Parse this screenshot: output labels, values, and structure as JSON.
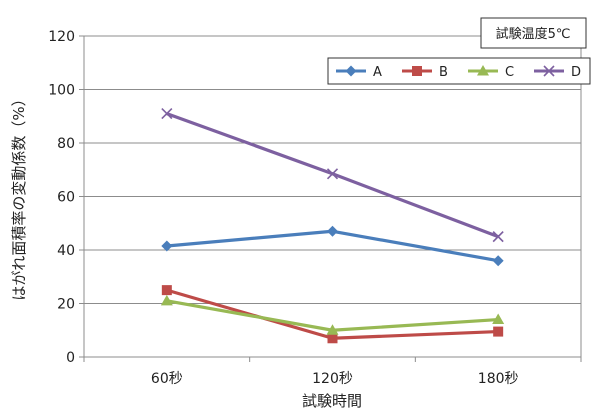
{
  "chart_data": {
    "type": "line",
    "categories": [
      "60秒",
      "120秒",
      "180秒"
    ],
    "series": [
      {
        "name": "A",
        "values": [
          41.5,
          47,
          36
        ],
        "color": "#4a7ebb",
        "marker": "diamond"
      },
      {
        "name": "B",
        "values": [
          25,
          7,
          9.5
        ],
        "color": "#be4b48",
        "marker": "square"
      },
      {
        "name": "C",
        "values": [
          21,
          10,
          14
        ],
        "color": "#98b954",
        "marker": "triangle"
      },
      {
        "name": "D",
        "values": [
          91,
          68.5,
          45
        ],
        "color": "#7d60a0",
        "marker": "x"
      }
    ],
    "ylim": [
      0,
      120
    ],
    "yticks": [
      0,
      20,
      40,
      60,
      80,
      100,
      120
    ],
    "xlabel": "試験時間",
    "ylabel": "はがれ面積率の変動係数（%）",
    "condition_label": "試験温度5℃",
    "grid": true,
    "legend_position": "top-right"
  }
}
